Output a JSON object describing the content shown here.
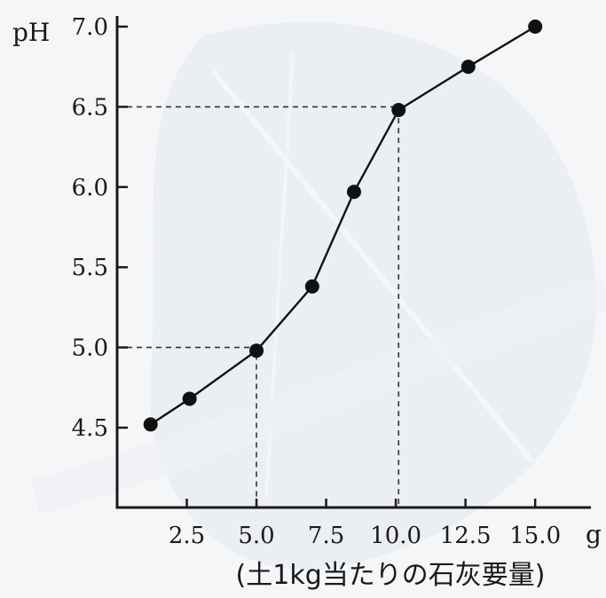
{
  "chart_data": {
    "type": "line",
    "xlabel": "g",
    "ylabel": "pH",
    "caption": "(土1kg当たりの石灰要量)",
    "xlim": [
      0,
      17
    ],
    "ylim": [
      4.0,
      7.0
    ],
    "x_ticks": [
      "2.5",
      "5.0",
      "7.5",
      "10.0",
      "12.5",
      "15.0"
    ],
    "y_ticks": [
      "4.5",
      "5.0",
      "5.5",
      "6.0",
      "6.5",
      "7.0"
    ],
    "series": [
      {
        "x": [
          1.2,
          2.6,
          5.0,
          7.0,
          8.5,
          10.1,
          12.6,
          15.0
        ],
        "y": [
          4.52,
          4.68,
          4.98,
          5.38,
          5.97,
          6.48,
          6.75,
          7.0
        ]
      }
    ],
    "reference_lines": [
      {
        "x": 5.0,
        "y": 5.0
      },
      {
        "x": 10.1,
        "y": 6.5
      }
    ],
    "colors": {
      "line": "#111111",
      "point": "#111111",
      "background": "#f4f6f8"
    }
  }
}
